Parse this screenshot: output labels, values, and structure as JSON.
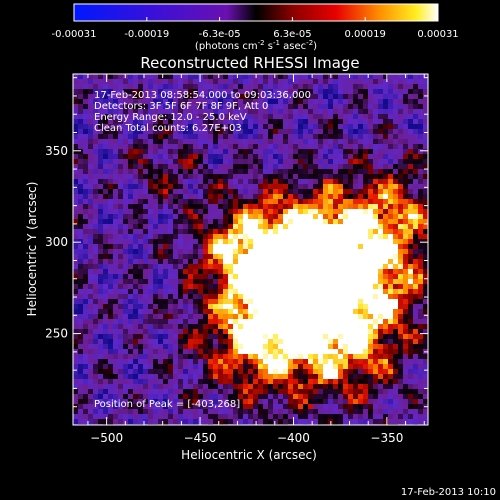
{
  "chart_data": {
    "type": "heatmap",
    "title": "Reconstructed RHESSI Image",
    "xlabel": "Heliocentric X (arcsec)",
    "ylabel": "Heliocentric Y (arcsec)",
    "xlim": [
      -518,
      -328
    ],
    "ylim": [
      200,
      392
    ],
    "x_ticks": [
      -500,
      -450,
      -400,
      -350
    ],
    "y_ticks": [
      250,
      300,
      350
    ],
    "colorbar": {
      "ticks": [
        "-0.00031",
        "-0.00019",
        "-6.3e-05",
        "6.3e-05",
        "0.00019",
        "0.00031"
      ],
      "units_text": "(photons cm",
      "units_exp1": "-2",
      "units_mid": " s",
      "units_exp2": "-1",
      "units_end": " asec",
      "units_exp3": "-2",
      "units_close": ")"
    },
    "annotations": [
      "17-Feb-2013 08:58:54.000 to 09:03:36.000",
      "Detectors: 3F 5F 6F 7F 8F 9F, Att 0",
      "Energy Range: 12.0 - 25.0 keV",
      "Clean    Total counts: 6.27E+03"
    ],
    "peak_label": "Position of Peak = [-403,268]",
    "peak": [
      -403,
      268
    ]
  },
  "footer": {
    "timestamp": "17-Feb-2013 10:10"
  }
}
